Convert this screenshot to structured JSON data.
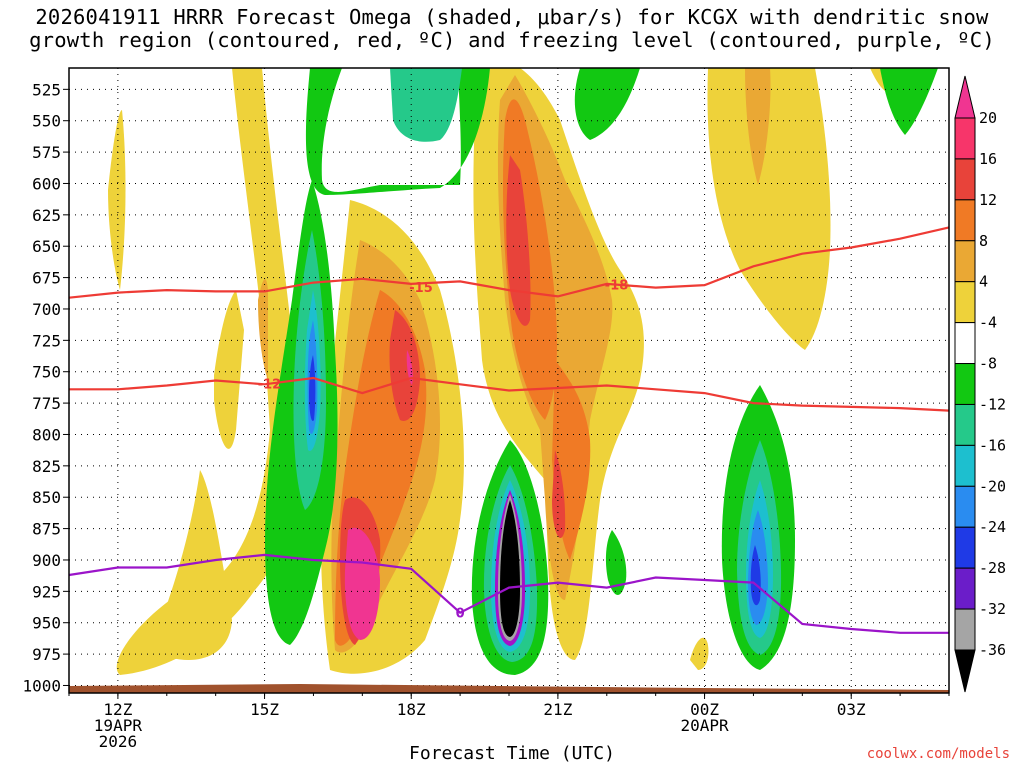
{
  "chart_data": {
    "type": "heatmap",
    "title_line1": "2026041911 HRRR Forecast Omega (shaded, μbar/s) for KCGX with dendritic snow",
    "title_line2": "growth region (contoured, red, ºC) and freezing level (contoured, purple, ºC)",
    "xlabel": "Forecast Time (UTC)",
    "credit": "coolwx.com/models",
    "y_levels": [
      "525",
      "550",
      "575",
      "600",
      "625",
      "650",
      "675",
      "700",
      "725",
      "750",
      "775",
      "800",
      "825",
      "850",
      "875",
      "900",
      "925",
      "950",
      "975",
      "1000"
    ],
    "x_ticks": [
      {
        "hour": 12,
        "label": "12Z",
        "sub1": "19APR",
        "sub2": "2026"
      },
      {
        "hour": 15,
        "label": "15Z",
        "sub1": "",
        "sub2": ""
      },
      {
        "hour": 18,
        "label": "18Z",
        "sub1": "",
        "sub2": ""
      },
      {
        "hour": 21,
        "label": "21Z",
        "sub1": "",
        "sub2": ""
      },
      {
        "hour": 24,
        "label": "00Z",
        "sub1": "20APR",
        "sub2": ""
      },
      {
        "hour": 27,
        "label": "03Z",
        "sub1": "",
        "sub2": ""
      }
    ],
    "x_range_hours": [
      11,
      29
    ],
    "y_range_hpa": [
      508,
      1006
    ],
    "colorbar": {
      "labels": [
        "20",
        "16",
        "12",
        "8",
        "4",
        "-4",
        "-8",
        "-12",
        "-16",
        "-20",
        "-24",
        "-28",
        "-32",
        "-36"
      ],
      "colors": [
        "#f7356a",
        "#e8433a",
        "#f07a25",
        "#eaa834",
        "#eed23a",
        "#ffffff",
        "#12c812",
        "#25c98a",
        "#1dbfcf",
        "#2a8cf0",
        "#1f3ae6",
        "#6b1dc9",
        "#a313c8",
        "#a5a5a5"
      ],
      "over_color": "#f03591",
      "under_color": "#000000"
    },
    "contour_labels": [
      "-18",
      "-12",
      "-15",
      "0"
    ],
    "series": [
      {
        "name": "-18C isotherm",
        "color": "#ee3b35",
        "x": [
          11,
          12,
          13,
          14,
          15,
          16,
          17,
          18,
          19,
          20,
          21,
          22,
          23,
          24,
          25,
          26,
          27,
          28,
          29
        ],
        "y": [
          691,
          687,
          685,
          686,
          686,
          679,
          676,
          680,
          678,
          685,
          690,
          680,
          683,
          681,
          666,
          656,
          651,
          644,
          635
        ]
      },
      {
        "name": "-12C isotherm",
        "color": "#ee3b35",
        "x": [
          11,
          12,
          13,
          14,
          15,
          16,
          17,
          18,
          19,
          20,
          21,
          22,
          23,
          24,
          25,
          26,
          27,
          28,
          29
        ],
        "y": [
          764,
          764,
          761,
          757,
          760,
          755,
          767,
          755,
          760,
          765,
          763,
          761,
          764,
          767,
          775,
          777,
          778,
          779,
          781
        ]
      },
      {
        "name": "0C freezing level",
        "color": "#9b14c9",
        "x": [
          11,
          12,
          13,
          14,
          15,
          16,
          17,
          18,
          19,
          20,
          21,
          22,
          23,
          24,
          25,
          26,
          27,
          28,
          29
        ],
        "y": [
          912,
          906,
          906,
          900,
          896,
          900,
          902,
          907,
          942,
          922,
          918,
          922,
          914,
          916,
          918,
          951,
          955,
          958,
          958
        ]
      }
    ]
  }
}
